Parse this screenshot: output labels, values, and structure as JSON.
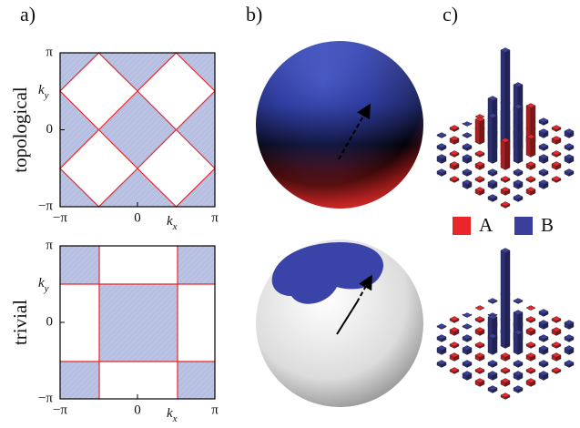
{
  "panel_labels": [
    "a)",
    "b)",
    "c)"
  ],
  "rows": [
    {
      "label": "topological",
      "y_ticks": [
        "π",
        "0",
        "−π"
      ],
      "x_ticks": [
        "−π",
        "0",
        "π"
      ],
      "y_axis_label": [
        "k",
        "y"
      ],
      "x_axis_label": [
        "k",
        "x"
      ]
    },
    {
      "label": "trivial",
      "y_ticks": [
        "π",
        "0",
        "−π"
      ],
      "x_ticks": [
        "−π",
        "0",
        "π"
      ],
      "y_axis_label": [
        "k",
        "y"
      ],
      "x_axis_label": [
        "k",
        "x"
      ]
    }
  ],
  "legend": [
    {
      "name": "A",
      "color": "#e8262b"
    },
    {
      "name": "B",
      "color": "#3a3f9e"
    }
  ]
}
